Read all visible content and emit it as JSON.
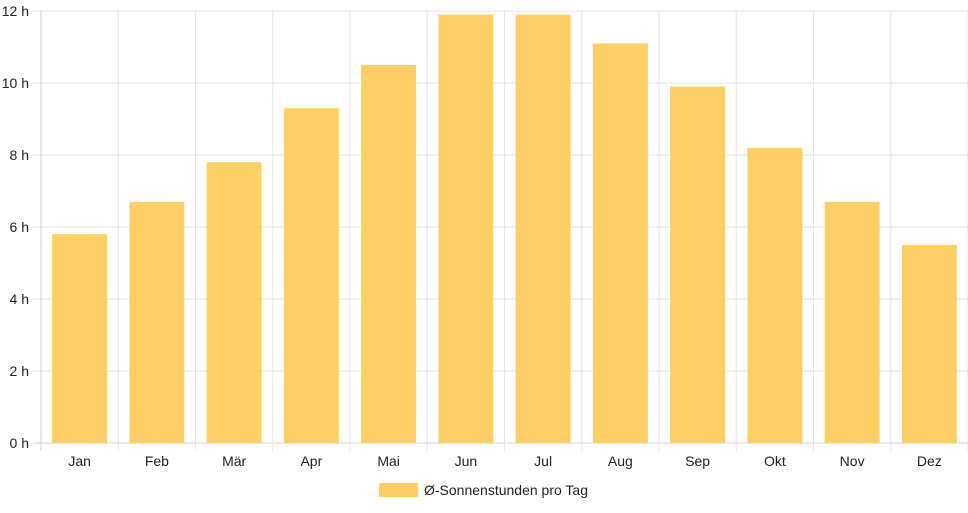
{
  "chart_data": {
    "type": "bar",
    "categories": [
      "Jan",
      "Feb",
      "Mär",
      "Apr",
      "Mai",
      "Jun",
      "Jul",
      "Aug",
      "Sep",
      "Okt",
      "Nov",
      "Dez"
    ],
    "series": [
      {
        "name": "Ø-Sonnenstunden pro Tag",
        "color": "#fdd067",
        "values": [
          5.8,
          6.7,
          7.8,
          9.3,
          10.5,
          11.9,
          11.9,
          11.1,
          9.9,
          8.2,
          6.7,
          5.5
        ]
      }
    ],
    "y_ticks": [
      "0 h",
      "2 h",
      "4 h",
      "6 h",
      "8 h",
      "10 h",
      "12 h"
    ],
    "ylim": [
      0,
      12
    ],
    "y_step": 2,
    "grid": true,
    "legend_position": "bottom"
  }
}
